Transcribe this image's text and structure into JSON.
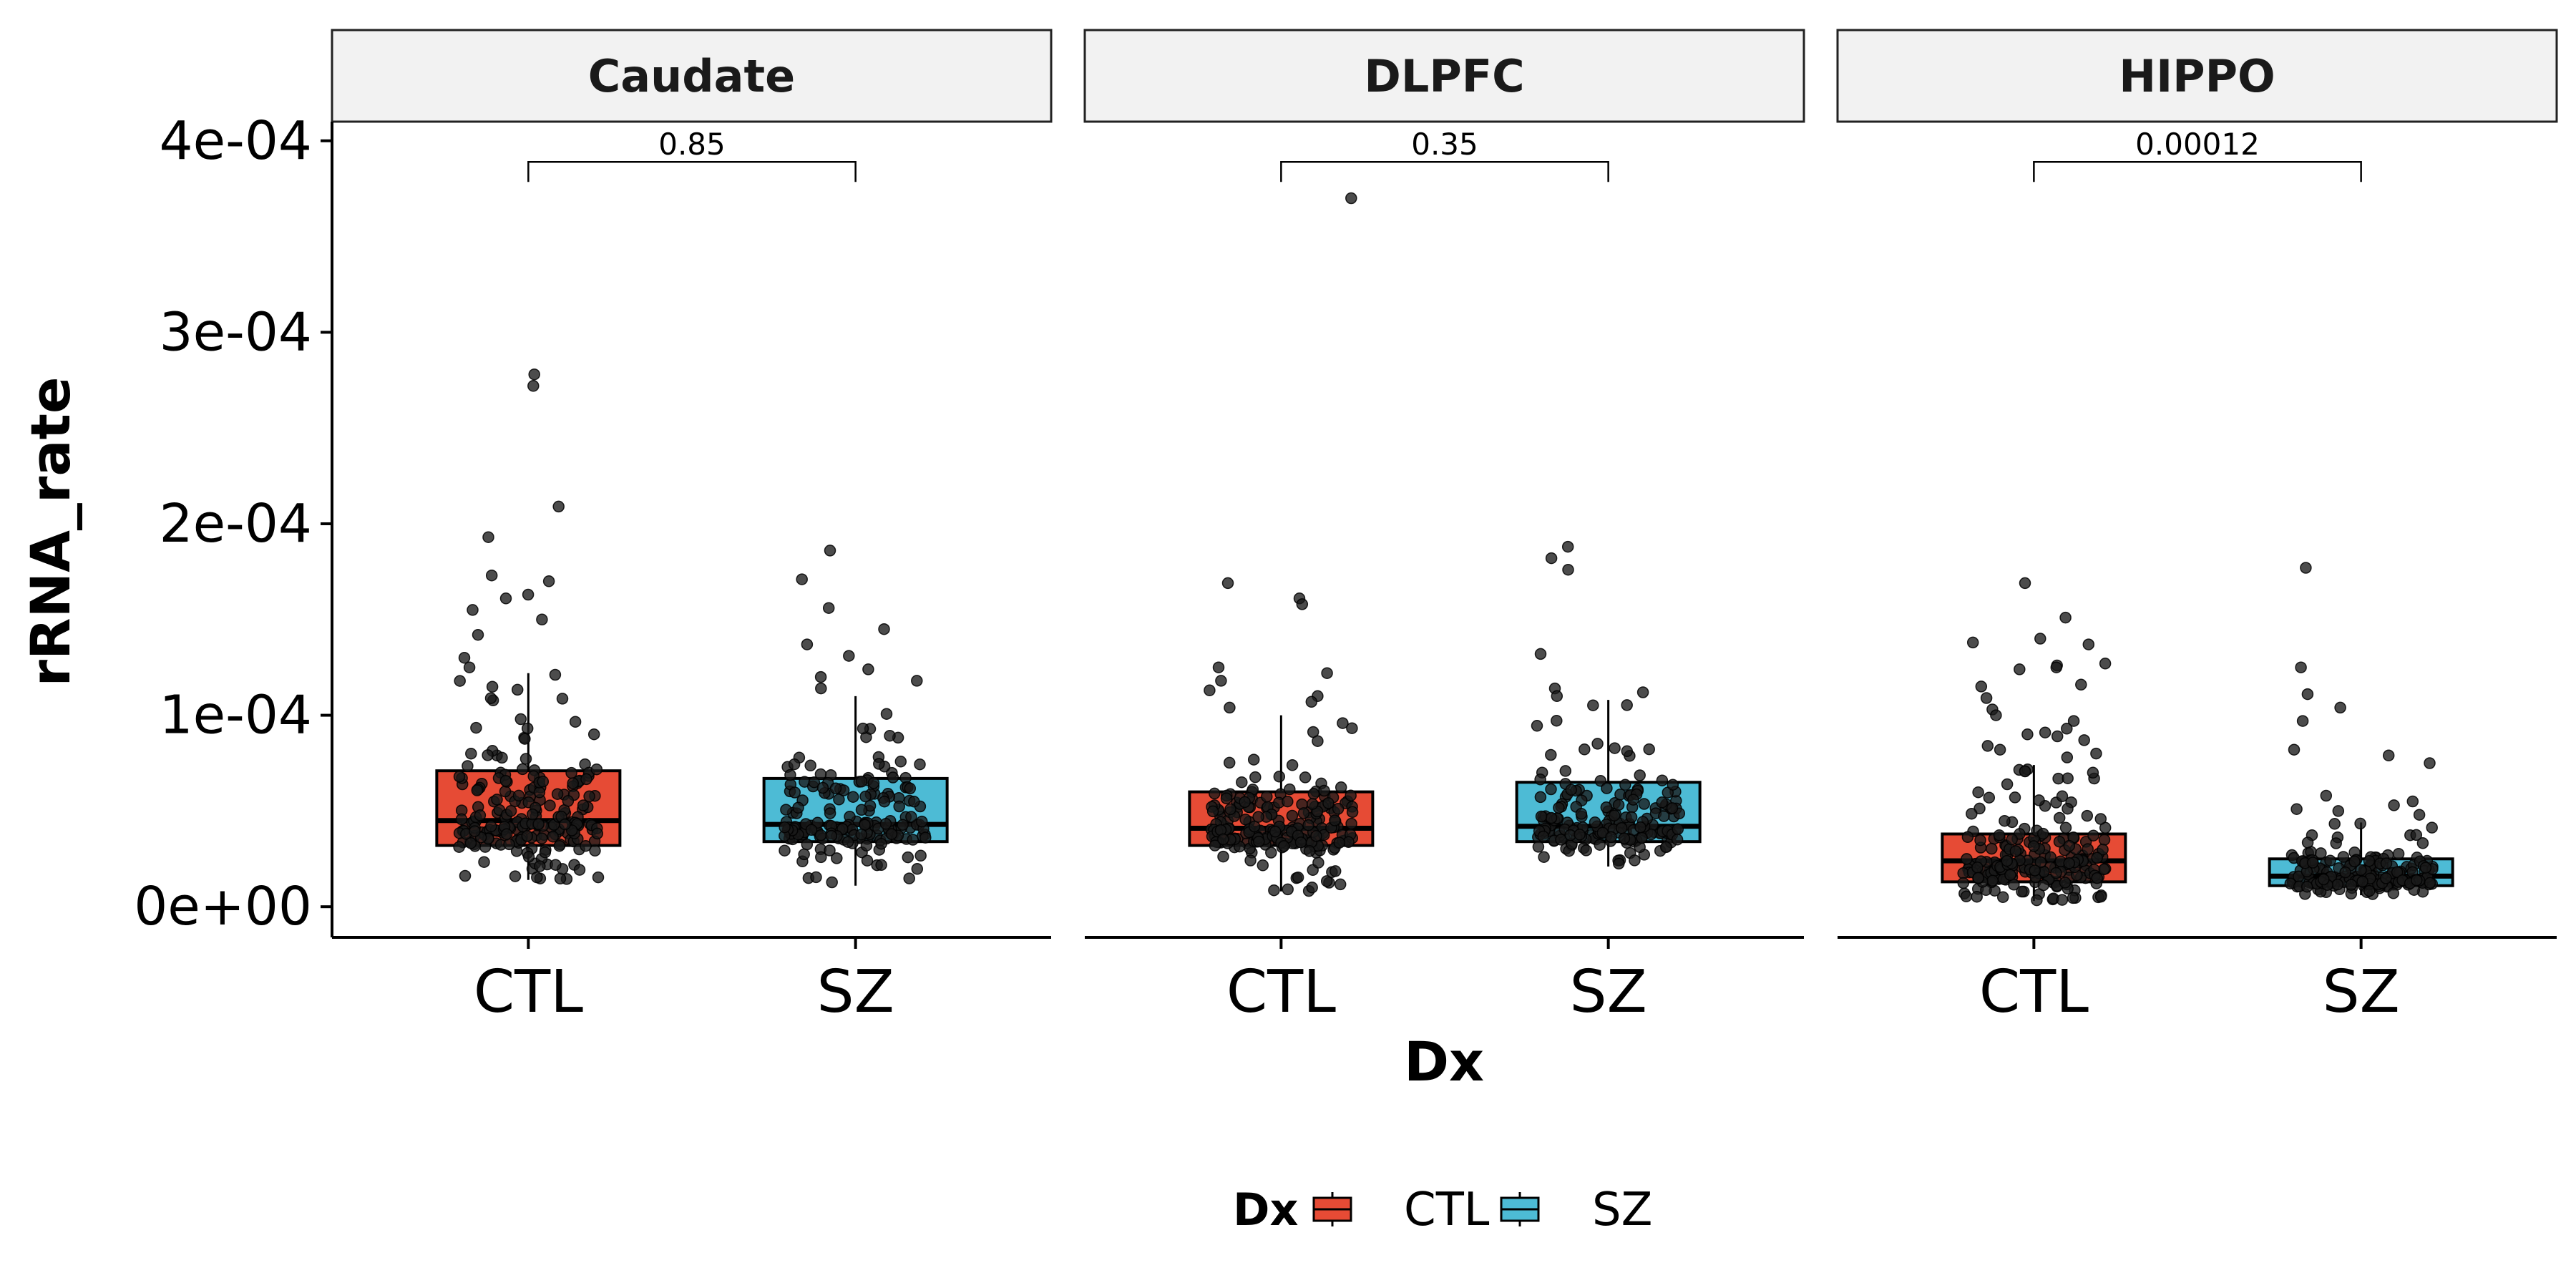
{
  "chart_data": {
    "type": "boxplot",
    "xlabel": "Dx",
    "ylabel": "rRNA_rate",
    "ylim": [
      -1.6e-05,
      0.00041
    ],
    "y_ticks": [
      {
        "value": 0,
        "label": "0e+00"
      },
      {
        "value": 0.0001,
        "label": "1e-04"
      },
      {
        "value": 0.0002,
        "label": "2e-04"
      },
      {
        "value": 0.0003,
        "label": "3e-04"
      },
      {
        "value": 0.0004,
        "label": "4e-04"
      }
    ],
    "categories": [
      "CTL",
      "SZ"
    ],
    "legend": {
      "title": "Dx",
      "position": "bottom",
      "items": [
        {
          "label": "CTL",
          "color": "#E64B35"
        },
        {
          "label": "SZ",
          "color": "#4DBBD5"
        }
      ]
    },
    "point_color": "#1a1a1a",
    "grid": false,
    "panels": [
      {
        "strip": "Caudate",
        "pvalue": "0.85",
        "boxes": [
          {
            "group": "CTL",
            "whisker_low": 1.4e-05,
            "q1": 3.2e-05,
            "median": 4.5e-05,
            "q3": 7.1e-05,
            "whisker_high": 0.000122,
            "n": 210,
            "outliers": [
              0.000278,
              0.000272,
              0.000209,
              0.000193,
              0.000173,
              0.00017,
              0.000163,
              0.000161,
              0.000155,
              0.00015,
              0.000142,
              0.00013,
              0.000125
            ]
          },
          {
            "group": "SZ",
            "whisker_low": 1.1e-05,
            "q1": 3.4e-05,
            "median": 4.3e-05,
            "q3": 6.7e-05,
            "whisker_high": 0.00011,
            "n": 180,
            "outliers": [
              0.000186,
              0.000171,
              0.000156,
              0.000145,
              0.000137,
              0.000131,
              0.000124,
              0.00012,
              0.000118,
              0.000114
            ]
          }
        ]
      },
      {
        "strip": "DLPFC",
        "pvalue": "0.35",
        "boxes": [
          {
            "group": "CTL",
            "whisker_low": 8e-06,
            "q1": 3.2e-05,
            "median": 4.1e-05,
            "q3": 6e-05,
            "whisker_high": 0.0001,
            "n": 210,
            "outliers": [
              0.00037,
              0.000169,
              0.000161,
              0.000158,
              0.000125,
              0.000122,
              0.000118,
              0.000113,
              0.00011,
              0.000107,
              0.000104
            ]
          },
          {
            "group": "SZ",
            "whisker_low": 2.1e-05,
            "q1": 3.4e-05,
            "median": 4.2e-05,
            "q3": 6.5e-05,
            "whisker_high": 0.000108,
            "n": 180,
            "outliers": [
              0.000188,
              0.000182,
              0.000176,
              0.000132,
              0.000114,
              0.000112,
              0.00011
            ]
          }
        ]
      },
      {
        "strip": "HIPPO",
        "pvalue": "0.00012",
        "boxes": [
          {
            "group": "CTL",
            "whisker_low": 3e-06,
            "q1": 1.3e-05,
            "median": 2.4e-05,
            "q3": 3.8e-05,
            "whisker_high": 7.4e-05,
            "n": 210,
            "outliers": [
              0.000169,
              0.000151,
              0.00014,
              0.000138,
              0.000137,
              0.000127,
              0.000126,
              0.000125,
              0.000124,
              0.000116,
              0.000115,
              0.000109,
              0.000103,
              0.0001,
              9.7e-05,
              9.3e-05,
              9.1e-05,
              9e-05,
              8.9e-05,
              8.7e-05,
              8.4e-05,
              8.2e-05,
              8e-05,
              7.8e-05
            ]
          },
          {
            "group": "SZ",
            "whisker_low": 6e-06,
            "q1": 1.1e-05,
            "median": 1.6e-05,
            "q3": 2.5e-05,
            "whisker_high": 4.4e-05,
            "n": 180,
            "outliers": [
              0.000177,
              0.000125,
              0.000111,
              0.000104,
              9.7e-05,
              8.2e-05,
              7.9e-05,
              7.5e-05,
              5.8e-05,
              5.5e-05,
              5.3e-05,
              5.1e-05,
              5e-05,
              4.8e-05
            ]
          }
        ]
      }
    ]
  }
}
